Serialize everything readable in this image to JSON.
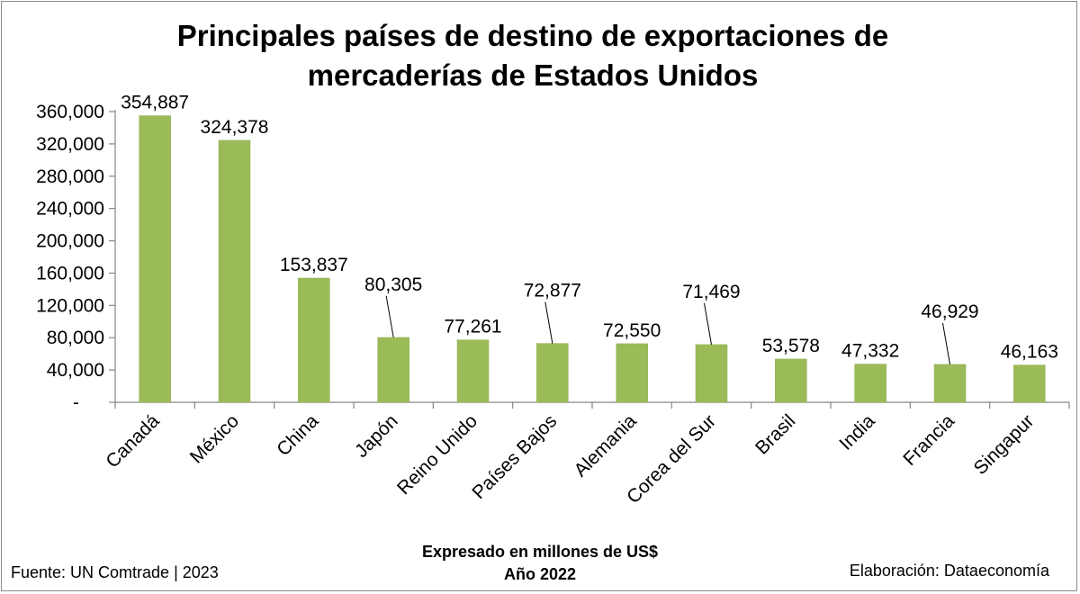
{
  "chart_data": {
    "type": "bar",
    "title_lines": [
      "Principales países de destino de exportaciones de",
      "mercaderías de Estados Unidos"
    ],
    "categories": [
      "Canadá",
      "México",
      "China",
      "Japón",
      "Reino Unido",
      "Países Bajos",
      "Alemania",
      "Corea del Sur",
      "Brasil",
      "India",
      "Francia",
      "Singapur"
    ],
    "values": [
      354887,
      324378,
      153837,
      80305,
      77261,
      72877,
      72550,
      71469,
      53578,
      47332,
      46929,
      46163
    ],
    "value_labels": [
      "354,887",
      "324,378",
      "153,837",
      "80,305",
      "77,261",
      "72,877",
      "72,550",
      "71,469",
      "53,578",
      "47,332",
      "46,929",
      "46,163"
    ],
    "ylim": [
      0,
      360000
    ],
    "y_ticks": [
      0,
      40000,
      80000,
      120000,
      160000,
      200000,
      240000,
      280000,
      320000,
      360000
    ],
    "y_tick_labels": [
      "-",
      "40,000",
      "80,000",
      "120,000",
      "160,000",
      "200,000",
      "240,000",
      "280,000",
      "320,000",
      "360,000"
    ],
    "xlabel_lines": [
      "Expresado en millones de US$",
      "Año 2022"
    ],
    "grid": false,
    "bar_color": "#9bbb59"
  },
  "footer": {
    "source": "Fuente:  UN Comtrade | 2023",
    "credit": "Elaboración: Dataeconomía"
  }
}
